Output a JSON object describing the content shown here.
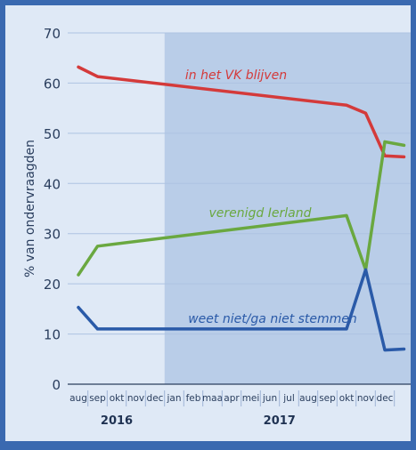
{
  "chart_data": {
    "type": "line",
    "ylabel": "% van ondervraagden",
    "ylim": [
      0,
      70
    ],
    "yticks": [
      0,
      10,
      20,
      30,
      40,
      50,
      60,
      70
    ],
    "months": [
      "aug",
      "sep",
      "okt",
      "nov",
      "dec",
      "jan",
      "feb",
      "maa",
      "apr",
      "mei",
      "jun",
      "jul",
      "aug",
      "sep",
      "okt",
      "nov",
      "dec"
    ],
    "years": [
      {
        "label": "2016",
        "from": 0,
        "to": 4
      },
      {
        "label": "2017",
        "from": 5,
        "to": 16
      }
    ],
    "grid": true,
    "shaded_region": {
      "from_month_index": 5,
      "to_month_index": 16
    },
    "series": [
      {
        "name": "in het VK blijven",
        "color": "#d43a3a",
        "points": [
          [
            0,
            63.2
          ],
          [
            1,
            61.3
          ],
          [
            14,
            55.6
          ],
          [
            15,
            54.0
          ],
          [
            16,
            45.5
          ],
          [
            17,
            45.3
          ]
        ]
      },
      {
        "name": "verenigd Ierland",
        "color": "#6aa840",
        "points": [
          [
            0,
            21.8
          ],
          [
            1,
            27.5
          ],
          [
            14,
            33.6
          ],
          [
            15,
            22.8
          ],
          [
            16,
            48.3
          ],
          [
            17,
            47.6
          ]
        ]
      },
      {
        "name": "weet niet/ga niet stemmen",
        "color": "#2a5aa8",
        "points": [
          [
            0,
            15.3
          ],
          [
            1,
            11.0
          ],
          [
            14,
            11.0
          ],
          [
            15,
            22.8
          ],
          [
            16,
            6.8
          ],
          [
            17,
            7.0
          ]
        ]
      }
    ]
  }
}
